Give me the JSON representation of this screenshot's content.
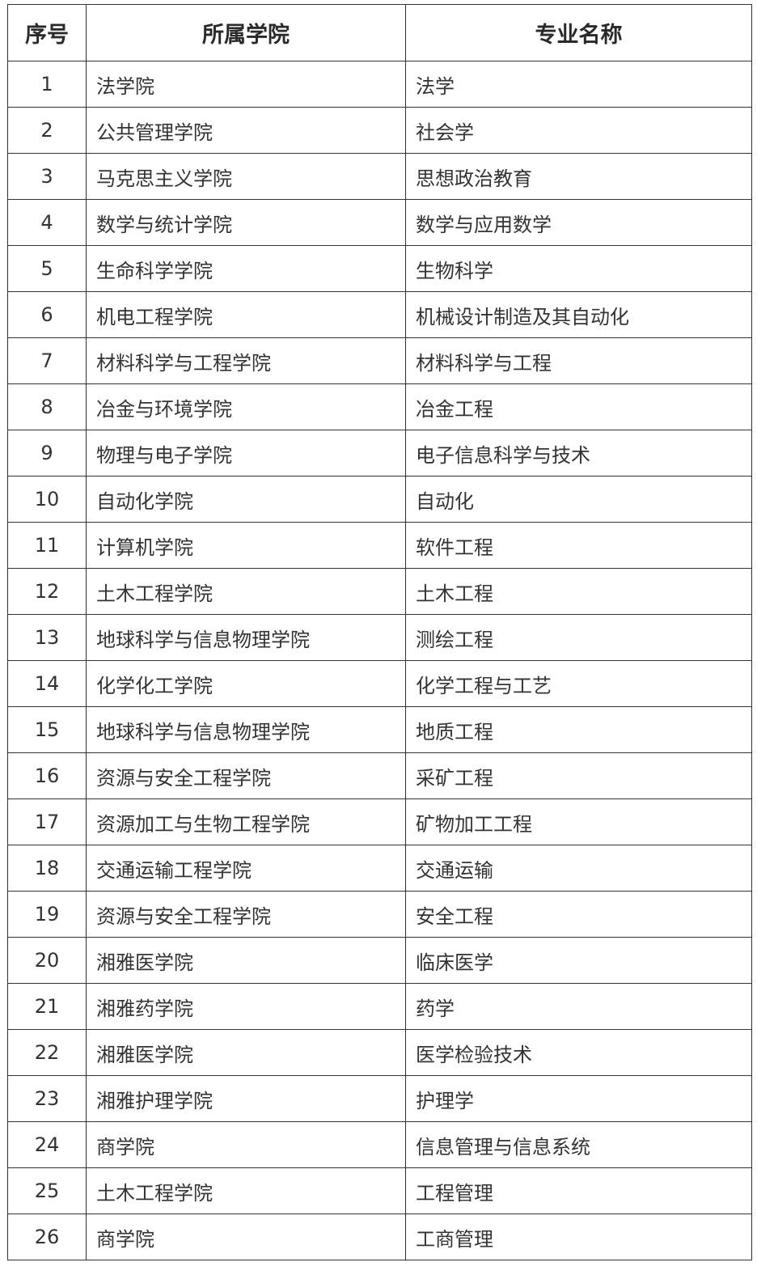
{
  "table": {
    "headers": [
      "序号",
      "所属学院",
      "专业名称"
    ],
    "rows": [
      [
        "1",
        "法学院",
        "法学"
      ],
      [
        "2",
        "公共管理学院",
        "社会学"
      ],
      [
        "3",
        "马克思主义学院",
        "思想政治教育"
      ],
      [
        "4",
        "数学与统计学院",
        "数学与应用数学"
      ],
      [
        "5",
        "生命科学学院",
        "生物科学"
      ],
      [
        "6",
        "机电工程学院",
        "机械设计制造及其自动化"
      ],
      [
        "7",
        "材料科学与工程学院",
        "材料科学与工程"
      ],
      [
        "8",
        "冶金与环境学院",
        "冶金工程"
      ],
      [
        "9",
        "物理与电子学院",
        "电子信息科学与技术"
      ],
      [
        "10",
        "自动化学院",
        "自动化"
      ],
      [
        "11",
        "计算机学院",
        "软件工程"
      ],
      [
        "12",
        "土木工程学院",
        "土木工程"
      ],
      [
        "13",
        "地球科学与信息物理学院",
        "测绘工程"
      ],
      [
        "14",
        "化学化工学院",
        "化学工程与工艺"
      ],
      [
        "15",
        "地球科学与信息物理学院",
        "地质工程"
      ],
      [
        "16",
        "资源与安全工程学院",
        "采矿工程"
      ],
      [
        "17",
        "资源加工与生物工程学院",
        "矿物加工工程"
      ],
      [
        "18",
        "交通运输工程学院",
        "交通运输"
      ],
      [
        "19",
        "资源与安全工程学院",
        "安全工程"
      ],
      [
        "20",
        "湘雅医学院",
        "临床医学"
      ],
      [
        "21",
        "湘雅药学院",
        "药学"
      ],
      [
        "22",
        "湘雅医学院",
        "医学检验技术"
      ],
      [
        "23",
        "湘雅护理学院",
        "护理学"
      ],
      [
        "24",
        "商学院",
        "信息管理与信息系统"
      ],
      [
        "25",
        "土木工程学院",
        "工程管理"
      ],
      [
        "26",
        "商学院",
        "工商管理"
      ]
    ]
  }
}
